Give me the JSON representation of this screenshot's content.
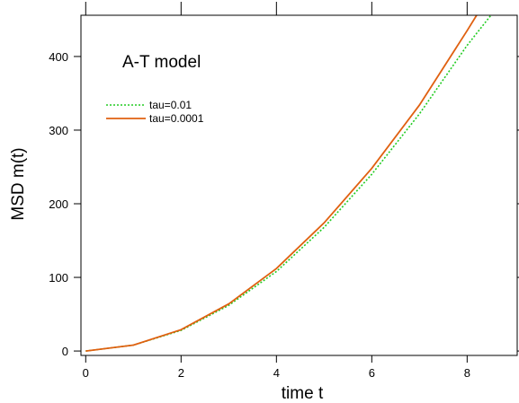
{
  "chart_data": {
    "type": "line",
    "title": "",
    "annotation": "A-T model",
    "xlabel": "time t",
    "ylabel": "MSD m(t)",
    "xlim": [
      -0.1,
      9.05
    ],
    "ylim": [
      -6,
      456
    ],
    "xticks": [
      0,
      2,
      4,
      6,
      8
    ],
    "yticks": [
      0,
      100,
      200,
      300,
      400
    ],
    "grid": false,
    "legend_position": "top-left",
    "series": [
      {
        "name": "tau=0.01",
        "color": "#22cc22",
        "style": "dotted",
        "x": [
          0,
          1,
          2,
          3,
          4,
          5,
          6,
          7,
          8,
          8.5
        ],
        "y": [
          0,
          8,
          28,
          62,
          108,
          168,
          240,
          322,
          415,
          456
        ]
      },
      {
        "name": "tau=0.0001",
        "color": "#e06010",
        "style": "solid",
        "x": [
          0,
          1,
          2,
          3,
          4,
          5,
          6,
          7,
          8,
          8.2
        ],
        "y": [
          0,
          8,
          29,
          64,
          112,
          174,
          248,
          334,
          435,
          456
        ]
      }
    ]
  }
}
